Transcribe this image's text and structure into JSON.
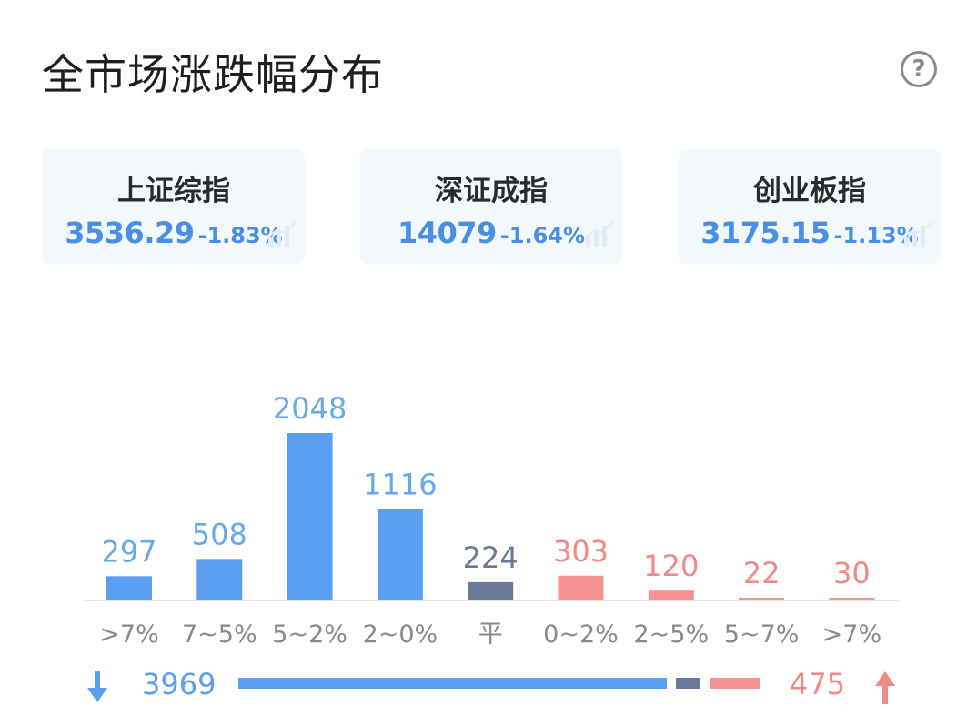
{
  "header": {
    "title": "全市场涨跌幅分布"
  },
  "help_icon": "question-circle-icon",
  "indices": [
    {
      "name": "上证综指",
      "value": "3536.29",
      "change": "-1.83%"
    },
    {
      "name": "深证成指",
      "value": "14079",
      "change": "-1.64%"
    },
    {
      "name": "创业板指",
      "value": "3175.15",
      "change": "-1.13%"
    }
  ],
  "colors": {
    "down": "#5a9ff0",
    "flat": "#6b7a99",
    "up": "#f59393"
  },
  "chart_data": {
    "type": "bar",
    "categories": [
      ">7%",
      "7~5%",
      "5~2%",
      "2~0%",
      "平",
      "0~2%",
      "2~5%",
      "5~7%",
      ">7%"
    ],
    "values": [
      297,
      508,
      2048,
      1116,
      224,
      303,
      120,
      22,
      30
    ],
    "groups": [
      "down",
      "down",
      "down",
      "down",
      "flat",
      "up",
      "up",
      "up",
      "up"
    ],
    "title": "",
    "xlabel": "",
    "ylabel": "",
    "ylim": [
      0,
      2048
    ],
    "grid": false
  },
  "summary": {
    "down_total": "3969",
    "flat_total": 224,
    "up_total": "475",
    "down_icon": "arrow-down-icon",
    "up_icon": "arrow-up-icon"
  }
}
